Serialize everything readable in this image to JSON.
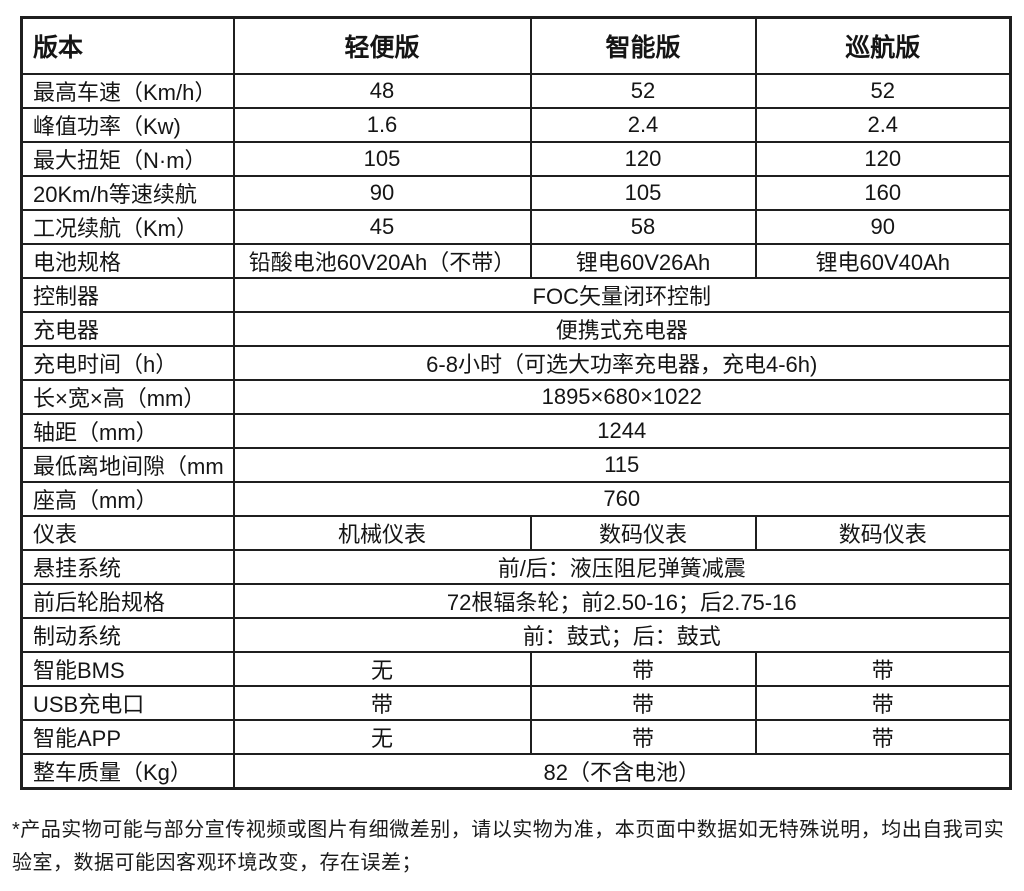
{
  "table": {
    "header": {
      "label": "版本",
      "columns": [
        "轻便版",
        "智能版",
        "巡航版"
      ]
    },
    "rows": [
      {
        "label": "最高车速（Km/h）",
        "values": [
          "48",
          "52",
          "52"
        ]
      },
      {
        "label": "峰值功率（Kw)",
        "values": [
          "1.6",
          "2.4",
          "2.4"
        ]
      },
      {
        "label": "最大扭矩（N·m）",
        "values": [
          "105",
          "120",
          "120"
        ]
      },
      {
        "label": "20Km/h等速续航",
        "values": [
          "90",
          "105",
          "160"
        ]
      },
      {
        "label": "工况续航（Km）",
        "values": [
          "45",
          "58",
          "90"
        ]
      },
      {
        "label": "电池规格",
        "values": [
          "铅酸电池60V20Ah（不带）",
          "锂电60V26Ah",
          "锂电60V40Ah"
        ]
      },
      {
        "label": "控制器",
        "value": "FOC矢量闭环控制"
      },
      {
        "label": "充电器",
        "value": "便携式充电器"
      },
      {
        "label": "充电时间（h）",
        "value": "6-8小时（可选大功率充电器，充电4-6h)"
      },
      {
        "label": "长×宽×高（mm）",
        "value": "1895×680×1022"
      },
      {
        "label": "轴距（mm）",
        "value": "1244"
      },
      {
        "label": "最低离地间隙（mm",
        "value": "115"
      },
      {
        "label": "座高（mm）",
        "value": "760"
      },
      {
        "label": "仪表",
        "values": [
          "机械仪表",
          "数码仪表",
          "数码仪表"
        ]
      },
      {
        "label": "悬挂系统",
        "value": "前/后：液压阻尼弹簧减震"
      },
      {
        "label": "前后轮胎规格",
        "value": "72根辐条轮；前2.50-16；后2.75-16"
      },
      {
        "label": "制动系统",
        "value": "前：鼓式；后：鼓式"
      },
      {
        "label": "智能BMS",
        "values": [
          "无",
          "带",
          "带"
        ]
      },
      {
        "label": "USB充电口",
        "values": [
          "带",
          "带",
          "带"
        ]
      },
      {
        "label": "智能APP",
        "values": [
          "无",
          "带",
          "带"
        ]
      },
      {
        "label": "整车质量（Kg）",
        "value": "82（不含电池）"
      }
    ]
  },
  "footnote": "*产品实物可能与部分宣传视频或图片有细微差别，请以实物为准，本页面中数据如无特殊说明，均出自我司实验室，数据可能因客观环境改变，存在误差；"
}
